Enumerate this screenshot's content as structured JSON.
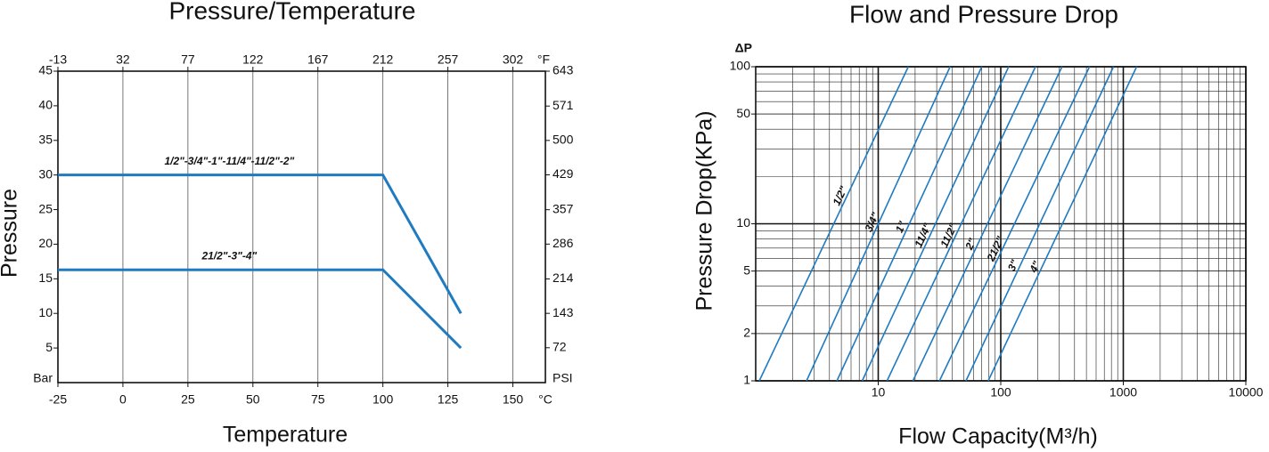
{
  "chart_data": [
    {
      "type": "line",
      "title": "Pressure/Temperature",
      "x_label": "Temperature",
      "y_label": "Pressure",
      "x_unit": "°C",
      "x2_unit": "°F",
      "y_unit": "Bar",
      "y2_unit": "PSI",
      "xlim": [
        -25,
        162.5
      ],
      "xticks": [
        -25,
        0,
        25,
        50,
        75,
        100,
        125,
        150
      ],
      "x2lim": [
        -13,
        324.5
      ],
      "x2ticks": [
        -13,
        32,
        77,
        122,
        167,
        212,
        257,
        302
      ],
      "ylim": [
        0,
        45
      ],
      "yticks": [
        5,
        10,
        15,
        20,
        25,
        30,
        35,
        40,
        45
      ],
      "y2lim": [
        0,
        643
      ],
      "y2ticks": [
        72,
        143,
        214,
        286,
        357,
        429,
        500,
        571,
        643
      ],
      "grid": "x",
      "label_color": "#e3120b",
      "series": [
        {
          "name": "1/2\"-3/4\"-1\"-11/4\"-11/2\"-2\"",
          "color": "#1f7bc1",
          "x": [
            -25,
            100,
            130
          ],
          "values": [
            30,
            30,
            10
          ]
        },
        {
          "name": "21/2\"-3\"-4\"",
          "color": "#1f7bc1",
          "x": [
            -25,
            100,
            130
          ],
          "values": [
            16.3,
            16.3,
            5
          ]
        }
      ]
    },
    {
      "type": "line",
      "title": "Flow and Pressure Drop",
      "x_label": "Flow Capacity(M³/h)",
      "y_label": "Pressure Drop(KPa)",
      "y_unit": "ΔP",
      "xscale": "log",
      "yscale": "log",
      "minor_grid": true,
      "xlim": [
        1,
        10000
      ],
      "xticks": [
        10,
        100,
        1000,
        10000
      ],
      "ylim": [
        1,
        100
      ],
      "yticks": [
        1,
        2,
        5,
        10,
        50,
        100
      ],
      "grid": "both",
      "label_color": "#e3120b",
      "series": [
        {
          "name": "1/2\"",
          "color": "#1f7bc1",
          "x": [
            1.07,
            17.6
          ],
          "values": [
            1,
            100
          ]
        },
        {
          "name": "3/4\"",
          "color": "#1f7bc1",
          "x": [
            2.6,
            38.6
          ],
          "values": [
            1,
            100
          ]
        },
        {
          "name": "1\"",
          "color": "#1f7bc1",
          "x": [
            4.6,
            70
          ],
          "values": [
            1,
            100
          ]
        },
        {
          "name": "11/4\"",
          "color": "#1f7bc1",
          "x": [
            7.4,
            116
          ],
          "values": [
            1,
            100
          ]
        },
        {
          "name": "11/2\"",
          "color": "#1f7bc1",
          "x": [
            11.8,
            192
          ],
          "values": [
            1,
            100
          ]
        },
        {
          "name": "2\"",
          "color": "#1f7bc1",
          "x": [
            19.2,
            316
          ],
          "values": [
            1,
            100
          ]
        },
        {
          "name": "21/2\"",
          "color": "#1f7bc1",
          "x": [
            31.6,
            530
          ],
          "values": [
            1,
            100
          ]
        },
        {
          "name": "3\"",
          "color": "#1f7bc1",
          "x": [
            52,
            832
          ],
          "values": [
            1,
            100
          ]
        },
        {
          "name": "4\"",
          "color": "#1f7bc1",
          "x": [
            79,
            1285
          ],
          "values": [
            1,
            100
          ]
        }
      ]
    }
  ]
}
